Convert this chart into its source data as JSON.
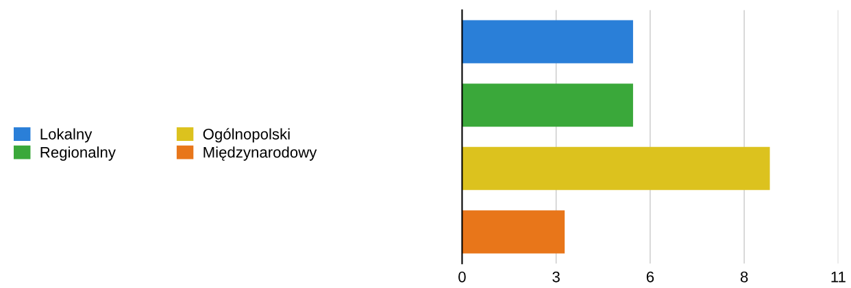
{
  "chart_data": {
    "type": "bar",
    "orientation": "horizontal",
    "stacked": true,
    "categories": [
      null,
      null,
      null,
      null
    ],
    "series": [
      {
        "name": "Lokalny",
        "color": "#2a7fd8",
        "values": [
          5,
          null,
          null,
          null
        ]
      },
      {
        "name": "Regionalny",
        "color": "#3aa83a",
        "values": [
          null,
          5,
          null,
          null
        ]
      },
      {
        "name": "Ogólnopolski",
        "color": "#dcc21e",
        "values": [
          null,
          null,
          9,
          null
        ]
      },
      {
        "name": "Międzynarodowy",
        "color": "#e8761a",
        "values": [
          null,
          null,
          null,
          3
        ]
      }
    ],
    "xlim": [
      0,
      11
    ],
    "xticks": [
      0,
      {
        "value": 2.75,
        "label": "3"
      },
      {
        "value": 5.5,
        "label": "6"
      },
      {
        "value": 8.25,
        "label": "8"
      },
      11
    ],
    "grid": "x",
    "legend": "left",
    "tick_labels": "x"
  }
}
